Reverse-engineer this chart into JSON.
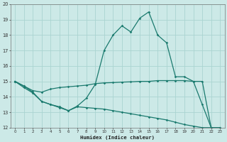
{
  "xlabel": "Humidex (Indice chaleur)",
  "bg_color": "#cce9e7",
  "grid_color": "#aad4d1",
  "line_color": "#1a7a6e",
  "x_values": [
    0,
    1,
    2,
    3,
    4,
    5,
    6,
    7,
    8,
    9,
    10,
    11,
    12,
    13,
    14,
    15,
    16,
    17,
    18,
    19,
    20,
    21,
    22,
    23
  ],
  "series1": [
    15.0,
    14.7,
    14.3,
    13.7,
    13.5,
    13.3,
    13.1,
    13.4,
    13.9,
    14.8,
    17.0,
    18.0,
    18.6,
    18.2,
    19.1,
    19.5,
    18.0,
    17.5,
    15.3,
    15.3,
    15.0,
    13.5,
    12.0,
    12.0
  ],
  "series2": [
    15.0,
    14.7,
    14.4,
    14.3,
    14.5,
    14.6,
    14.65,
    14.7,
    14.75,
    14.85,
    14.9,
    14.92,
    14.95,
    14.97,
    15.0,
    15.0,
    15.05,
    15.05,
    15.05,
    15.05,
    15.0,
    15.0,
    12.0,
    12.0
  ],
  "series3": [
    15.0,
    14.6,
    14.25,
    13.7,
    13.5,
    13.35,
    13.1,
    13.35,
    13.3,
    13.25,
    13.2,
    13.1,
    13.0,
    12.9,
    12.8,
    12.7,
    12.6,
    12.5,
    12.35,
    12.2,
    12.1,
    12.0,
    12.0,
    12.0
  ],
  "ylim": [
    12,
    20
  ],
  "xlim_min": -0.5,
  "xlim_max": 23.5,
  "yticks": [
    12,
    13,
    14,
    15,
    16,
    17,
    18,
    19,
    20
  ],
  "xticks": [
    0,
    1,
    2,
    3,
    4,
    5,
    6,
    7,
    8,
    9,
    10,
    11,
    12,
    13,
    14,
    15,
    16,
    17,
    18,
    19,
    20,
    21,
    22,
    23
  ]
}
